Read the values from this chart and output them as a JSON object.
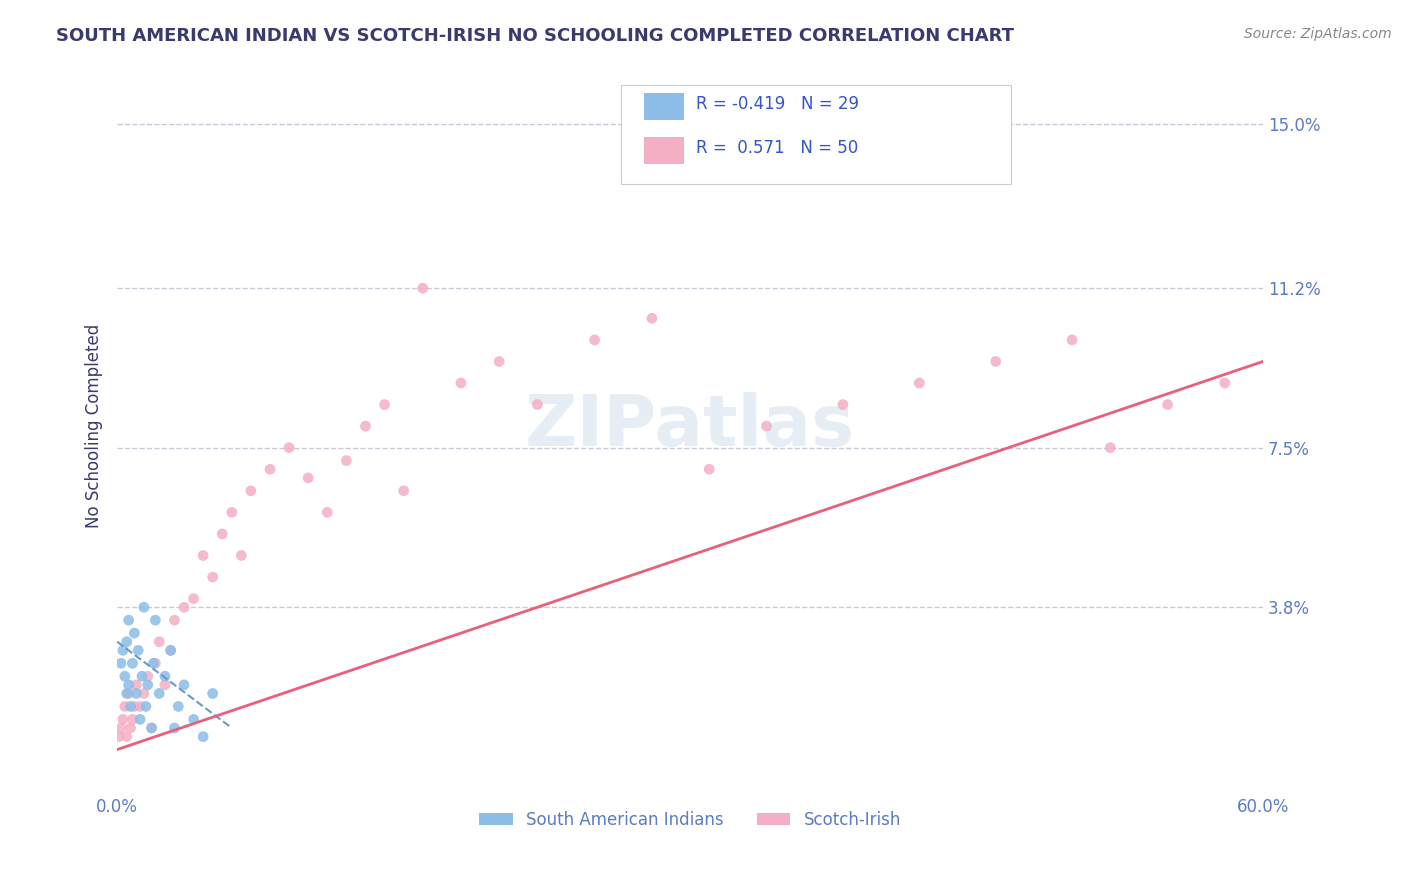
{
  "title": "SOUTH AMERICAN INDIAN VS SCOTCH-IRISH NO SCHOOLING COMPLETED CORRELATION CHART",
  "source": "Source: ZipAtlas.com",
  "ylabel": "No Schooling Completed",
  "legend_label1": "South American Indians",
  "legend_label2": "Scotch-Irish",
  "background_color": "#ffffff",
  "title_color": "#3a3a6e",
  "axis_label_color": "#3a3a6e",
  "tick_color": "#5b7bc4",
  "grid_color": "#c8c8d8",
  "xlim": [
    0.0,
    0.6
  ],
  "ylim": [
    -0.005,
    0.165
  ],
  "y_tick_values": [
    0.038,
    0.075,
    0.112,
    0.15
  ],
  "y_tick_labels": [
    "3.8%",
    "7.5%",
    "11.2%",
    "15.0%"
  ],
  "blue_scatter_x": [
    0.002,
    0.003,
    0.004,
    0.005,
    0.005,
    0.006,
    0.006,
    0.007,
    0.008,
    0.009,
    0.01,
    0.011,
    0.012,
    0.013,
    0.014,
    0.015,
    0.016,
    0.018,
    0.019,
    0.02,
    0.022,
    0.025,
    0.028,
    0.03,
    0.032,
    0.035,
    0.04,
    0.045,
    0.05
  ],
  "blue_scatter_y": [
    0.025,
    0.028,
    0.022,
    0.03,
    0.018,
    0.035,
    0.02,
    0.015,
    0.025,
    0.032,
    0.018,
    0.028,
    0.012,
    0.022,
    0.038,
    0.015,
    0.02,
    0.01,
    0.025,
    0.035,
    0.018,
    0.022,
    0.028,
    0.01,
    0.015,
    0.02,
    0.012,
    0.008,
    0.018
  ],
  "pink_scatter_x": [
    0.001,
    0.002,
    0.003,
    0.004,
    0.005,
    0.006,
    0.007,
    0.008,
    0.009,
    0.01,
    0.012,
    0.014,
    0.016,
    0.018,
    0.02,
    0.022,
    0.025,
    0.028,
    0.03,
    0.035,
    0.04,
    0.045,
    0.05,
    0.055,
    0.06,
    0.065,
    0.07,
    0.08,
    0.09,
    0.1,
    0.11,
    0.12,
    0.13,
    0.14,
    0.15,
    0.16,
    0.18,
    0.2,
    0.22,
    0.25,
    0.28,
    0.31,
    0.34,
    0.38,
    0.42,
    0.46,
    0.5,
    0.52,
    0.55,
    0.58
  ],
  "pink_scatter_y": [
    0.008,
    0.01,
    0.012,
    0.015,
    0.008,
    0.018,
    0.01,
    0.012,
    0.015,
    0.02,
    0.015,
    0.018,
    0.022,
    0.01,
    0.025,
    0.03,
    0.02,
    0.028,
    0.035,
    0.038,
    0.04,
    0.05,
    0.045,
    0.055,
    0.06,
    0.05,
    0.065,
    0.07,
    0.075,
    0.068,
    0.06,
    0.072,
    0.08,
    0.085,
    0.065,
    0.112,
    0.09,
    0.095,
    0.085,
    0.1,
    0.105,
    0.07,
    0.08,
    0.085,
    0.09,
    0.095,
    0.1,
    0.075,
    0.085,
    0.09
  ],
  "blue_line_x": [
    0.0,
    0.06
  ],
  "blue_line_y": [
    0.03,
    0.01
  ],
  "pink_line_x": [
    0.0,
    0.6
  ],
  "pink_line_y": [
    0.005,
    0.095
  ],
  "blue_scatter_color": "#8bbde8",
  "pink_scatter_color": "#f4afc4",
  "blue_line_color": "#6699cc",
  "pink_line_color": "#e8607a",
  "legend_text_color": "#3355cc",
  "legend_r1": "R = -0.419",
  "legend_n1": "N = 29",
  "legend_r2": "R =  0.571",
  "legend_n2": "N = 50"
}
